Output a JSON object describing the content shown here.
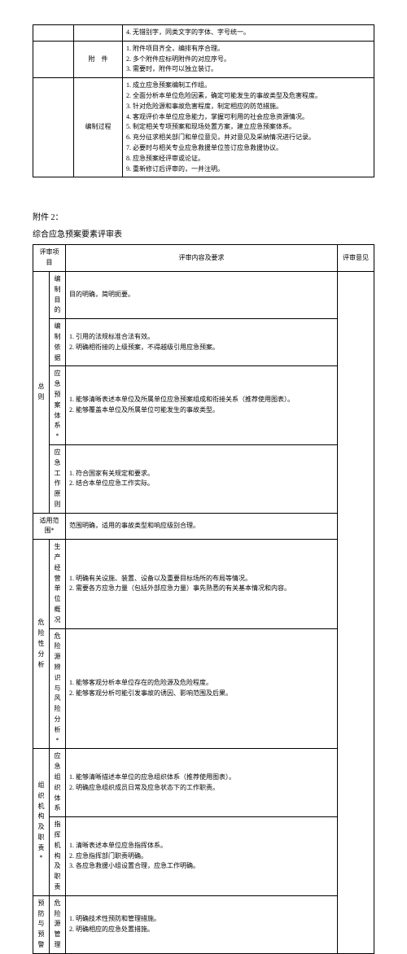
{
  "table1": {
    "row1": {
      "content": "4. 无错别字，同类文字的字体、字号统一。"
    },
    "row2": {
      "label": "附　件",
      "items": [
        "1. 附件项目齐全，编排有序合理。",
        "2. 多个附件应标明附件的对应序号。",
        "3. 需要时，附件可以独立装订。"
      ]
    },
    "row3": {
      "label": "编制过程",
      "items": [
        "1. 成立应急预案编制工作组。",
        "2. 全面分析本单位危险因素，确定可能发生的事故类型及危害程度。",
        "3. 针对危险源和事故危害程度，制定相应的防范措施。",
        "4. 客观评价本单位应急能力，掌握可利用的社会应急资源情况。",
        "5. 制定相关专项预案和现场处置方案，建立应急预案体系。",
        "6. 充分征求相关部门和单位意见，并对意见及采纳情况进行记录。",
        "7. 必要时与相关专业应急救援单位签订应急救援协议。",
        "8. 应急预案经评审或论证。",
        "9. 重新修订后评审的，一并注明。"
      ]
    }
  },
  "attachment": {
    "title": "附件 2：",
    "subtitle": "综合应急预案要素评审表"
  },
  "table2": {
    "header": {
      "col1": "评审项目",
      "col2": "评审内容及要求",
      "col3": "评审意见"
    },
    "group1": {
      "label": "总　则",
      "rows": [
        {
          "label": "编制目的",
          "content": "目的明确，简明扼要。"
        },
        {
          "label": "编制依据",
          "items": [
            "1. 引用的法规标准合法有效。",
            "2. 明确相衔接的上级预案，不得越级引用应急预案。"
          ]
        },
        {
          "label": "应急预案体系*",
          "items": [
            "1. 能够清晰表述本单位及所属单位应急预案组成和衔接关系（推荐使用图表）。",
            "2. 能够覆盖本单位及所属单位可能发生的事故类型。"
          ]
        },
        {
          "label": "应急工作原则",
          "items": [
            "1. 符合国家有关规定和要求。",
            "2. 结合本单位应急工作实际。"
          ]
        }
      ]
    },
    "group2": {
      "label": "适用范围*",
      "content": "范围明确，适用的事故类型和响应级别合理。"
    },
    "group3": {
      "label": "危险性分析",
      "rows": [
        {
          "label": "生产经营单位概况",
          "items": [
            "1. 明确有关设施、装置、设备以及重要目标场所的布局等情况。",
            "2. 需要各方应急力量（包括外部应急力量）事先熟悉的有关基本情况和内容。"
          ]
        },
        {
          "label": "危险源辨识与风险分析*",
          "items": [
            "1. 能够客观分析本单位存在的危险源及危险程度。",
            "2. 能够客观分析可能引发事故的诱因、影响范围及后果。"
          ]
        }
      ]
    },
    "group4": {
      "label": "组织机构及职责*",
      "rows": [
        {
          "label": "应急组织体系",
          "items": [
            "1. 能够清晰描述本单位的应急组织体系（推荐使用图表）。",
            "2. 明确应急组织成员日常及应急状态下的工作职责。"
          ]
        },
        {
          "label": "指挥机构及职责",
          "items": [
            "1. 清晰表述本单位应急指挥体系。",
            "2. 应急指挥部门职责明确。",
            "3. 各应急救援小组设置合理，应急工作明确。"
          ]
        }
      ]
    },
    "group5": {
      "label": "预防与预警",
      "rows": [
        {
          "label": "危险源管理",
          "items": [
            "1. 明确技术性预防和管理措施。",
            "2. 明确相应的应急处置措施。"
          ]
        }
      ]
    }
  }
}
